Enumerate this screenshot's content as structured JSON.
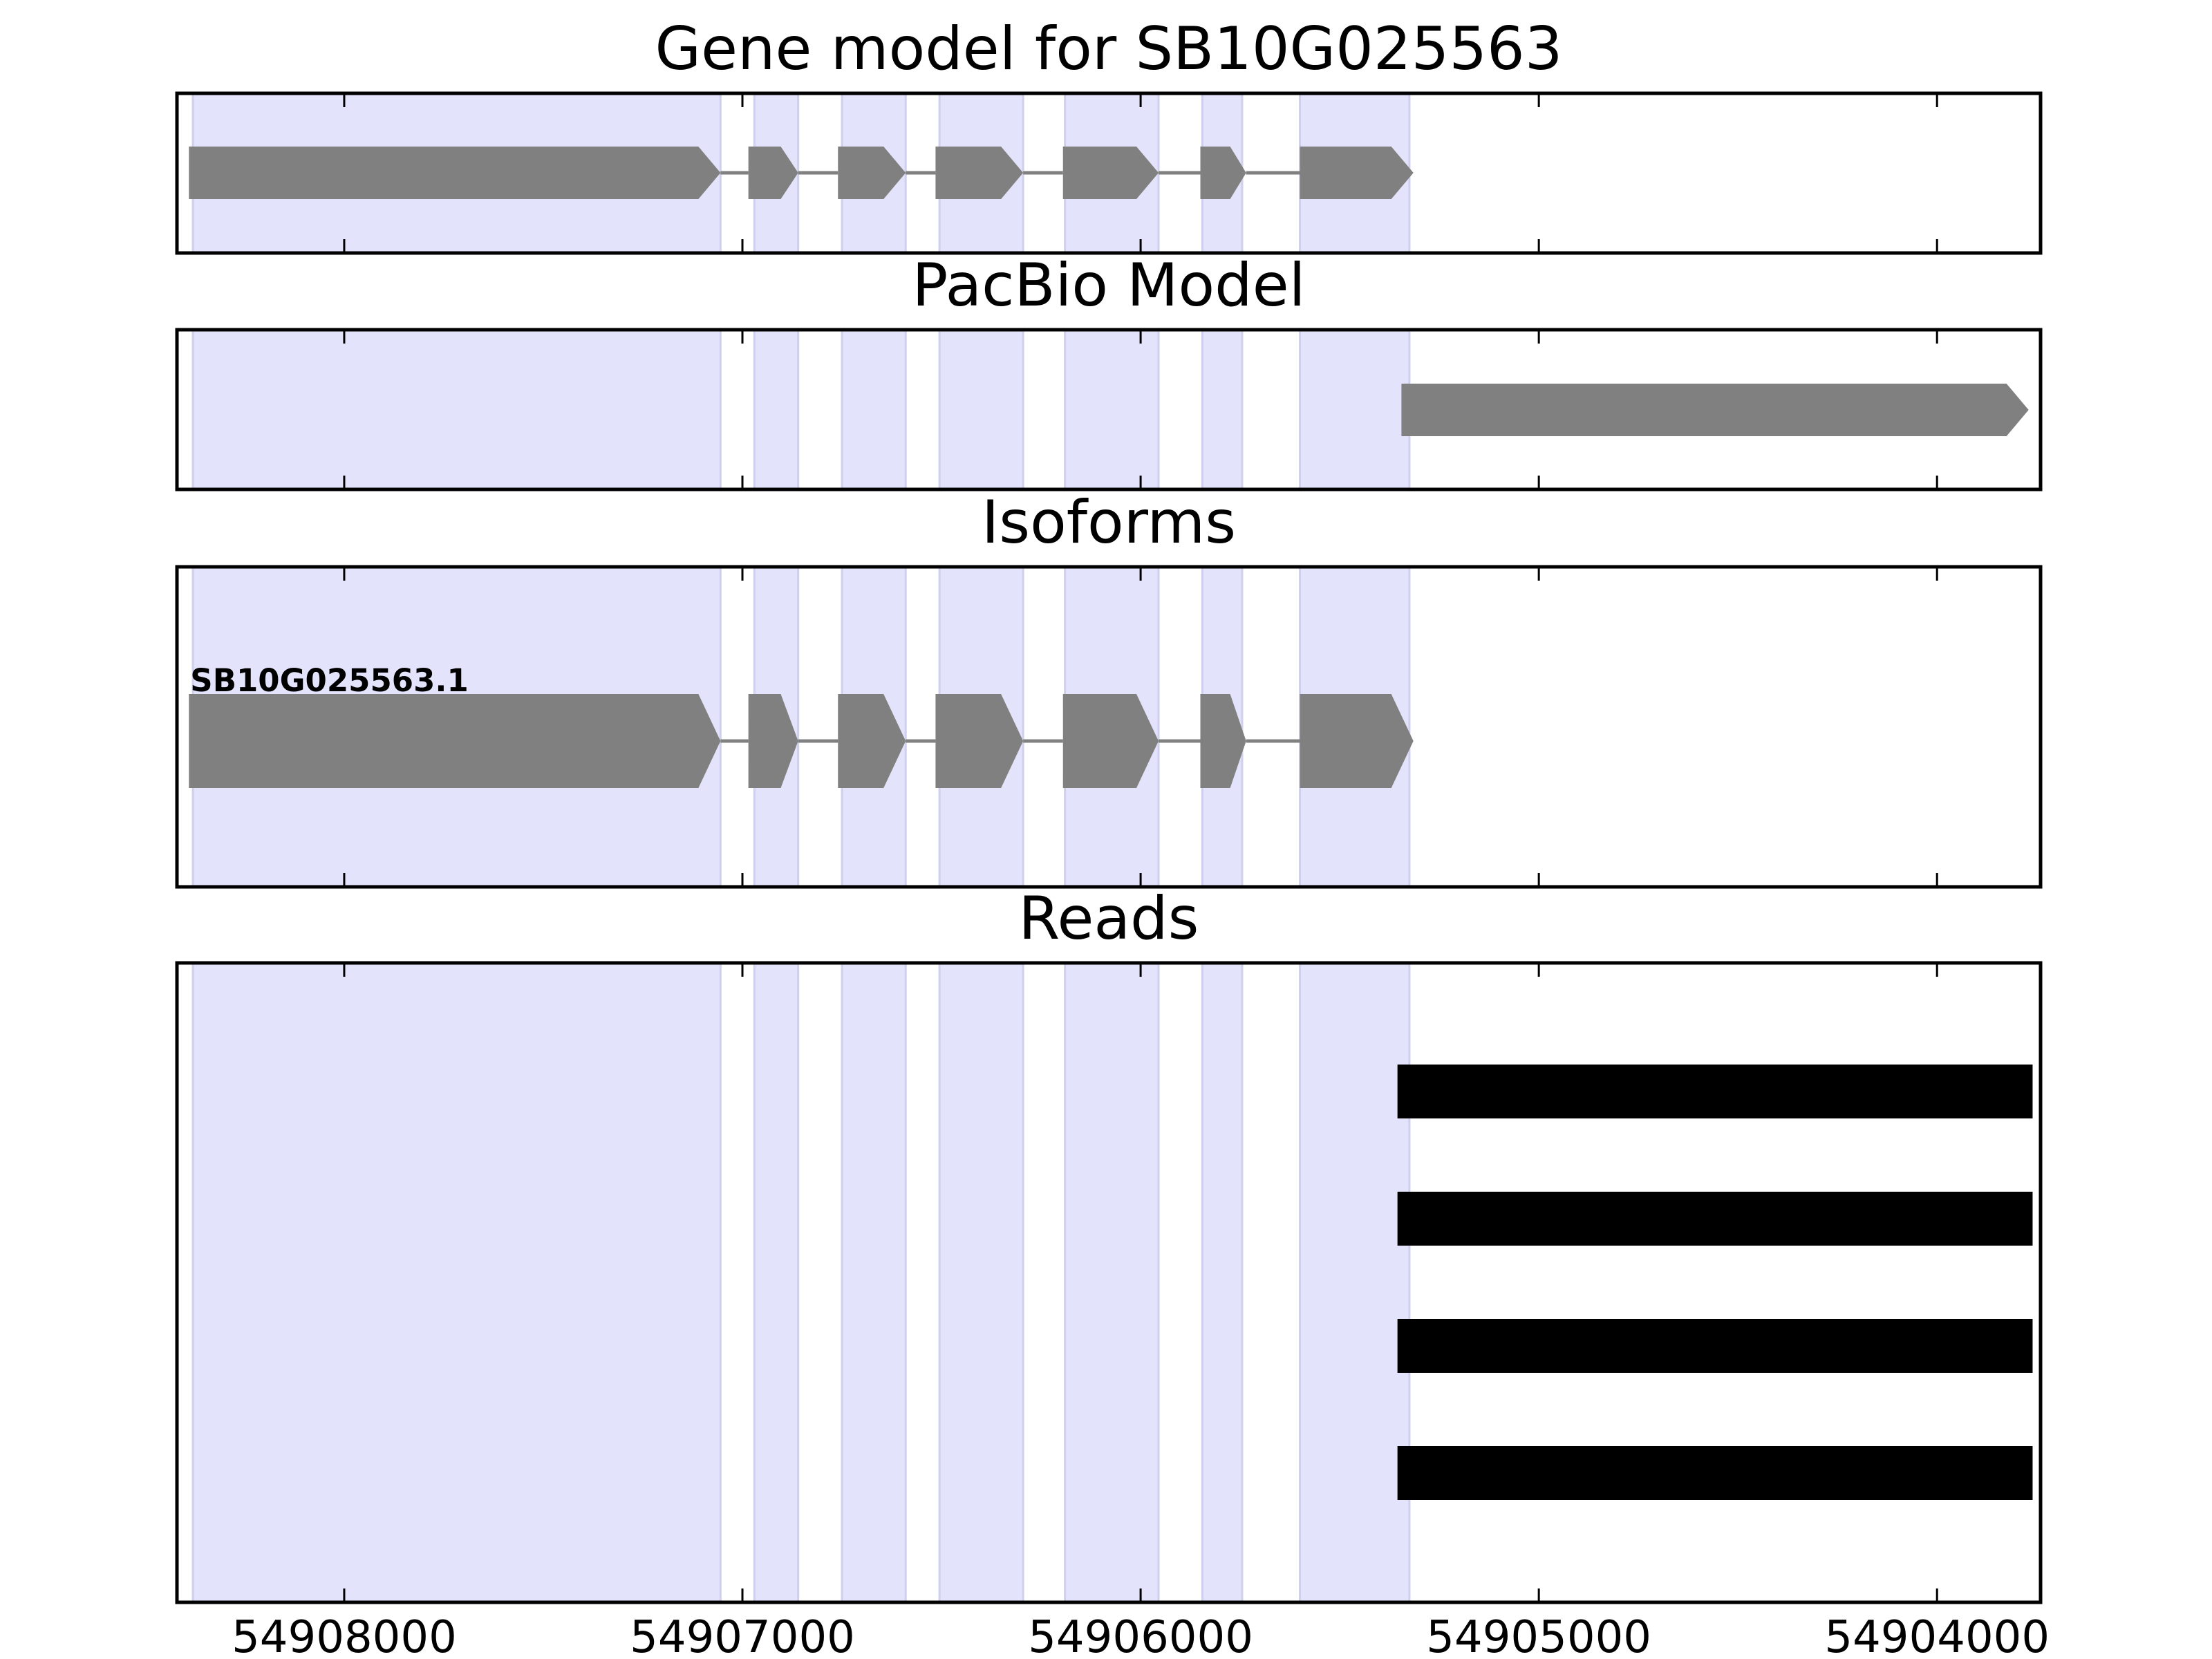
{
  "chart_data": {
    "type": "gene_track",
    "x_axis": {
      "reversed": true,
      "xlim": [
        54908420,
        54903740
      ],
      "ticks": [
        54908000,
        54907000,
        54906000,
        54905000,
        54904000
      ],
      "tick_labels": [
        "54908000",
        "54907000",
        "54906000",
        "54905000",
        "54904000"
      ]
    },
    "highlight_color": "#e3e3fc",
    "feature_color": "#808080",
    "read_color": "#000000",
    "exon_regions": [
      [
        54908380,
        54907055
      ],
      [
        54906970,
        54906860
      ],
      [
        54906750,
        54906590
      ],
      [
        54906505,
        54906295
      ],
      [
        54906190,
        54905955
      ],
      [
        54905845,
        54905745
      ],
      [
        54905600,
        54905325
      ]
    ],
    "panels": [
      {
        "title": "Gene model for SB10G025563",
        "features": [
          {
            "kind": "transcript",
            "exons": [
              [
                54908390,
                54907055
              ],
              [
                54906985,
                54906860
              ],
              [
                54906760,
                54906590
              ],
              [
                54906515,
                54906295
              ],
              [
                54906195,
                54905955
              ],
              [
                54905850,
                54905735
              ],
              [
                54905600,
                54905315
              ]
            ]
          }
        ]
      },
      {
        "title": "PacBio Model",
        "features": [
          {
            "kind": "transcript",
            "exons": [
              [
                54905345,
                54903770
              ]
            ]
          }
        ]
      },
      {
        "title": "Isoforms",
        "features": [
          {
            "kind": "transcript",
            "label": "SB10G025563.1",
            "exons": [
              [
                54908390,
                54907055
              ],
              [
                54906985,
                54906860
              ],
              [
                54906760,
                54906590
              ],
              [
                54906515,
                54906295
              ],
              [
                54906195,
                54905955
              ],
              [
                54905850,
                54905735
              ],
              [
                54905600,
                54905315
              ]
            ]
          }
        ]
      },
      {
        "title": "Reads",
        "features": [
          {
            "kind": "read",
            "start": 54905355,
            "end": 54903760
          },
          {
            "kind": "read",
            "start": 54905355,
            "end": 54903760
          },
          {
            "kind": "read",
            "start": 54905355,
            "end": 54903760
          },
          {
            "kind": "read",
            "start": 54905355,
            "end": 54903760
          }
        ]
      }
    ]
  }
}
